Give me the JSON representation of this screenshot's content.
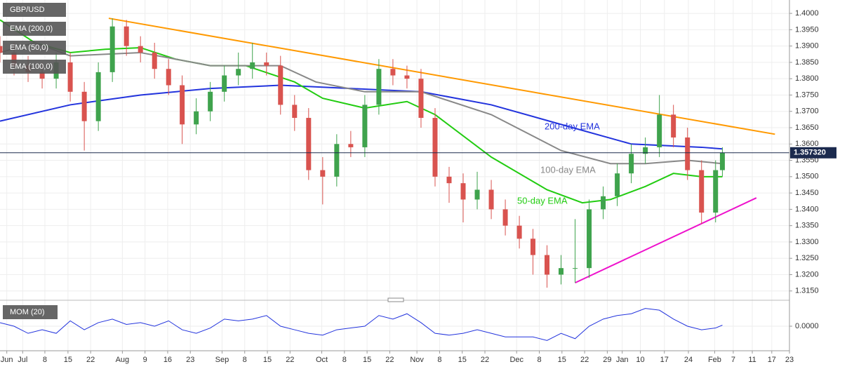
{
  "chart_data": [
    {
      "type": "candlestick",
      "symbol": "GBP/USD",
      "up_color": "#3fa34d",
      "down_color": "#d9534f",
      "grid": true,
      "xlim": [
        0,
        174.2
      ],
      "ylim": [
        1.3128,
        1.4041
      ],
      "xticks": [
        {
          "value": 1.5,
          "label": "Jun"
        },
        {
          "value": 5,
          "label": "Jul"
        },
        {
          "value": 9.9,
          "label": "8"
        },
        {
          "value": 15,
          "label": "15"
        },
        {
          "value": 20,
          "label": "22"
        },
        {
          "value": 27,
          "label": "Aug"
        },
        {
          "value": 32,
          "label": "9"
        },
        {
          "value": 37,
          "label": "16"
        },
        {
          "value": 42,
          "label": "23"
        },
        {
          "value": 49,
          "label": "Sep"
        },
        {
          "value": 54,
          "label": "8"
        },
        {
          "value": 59,
          "label": "15"
        },
        {
          "value": 64,
          "label": "22"
        },
        {
          "value": 71,
          "label": "Oct"
        },
        {
          "value": 76,
          "label": "8"
        },
        {
          "value": 81,
          "label": "15"
        },
        {
          "value": 86,
          "label": "22"
        },
        {
          "value": 92,
          "label": "Nov"
        },
        {
          "value": 97,
          "label": "8"
        },
        {
          "value": 102,
          "label": "15"
        },
        {
          "value": 107,
          "label": "22"
        },
        {
          "value": 114,
          "label": "Dec"
        },
        {
          "value": 119,
          "label": "8"
        },
        {
          "value": 124,
          "label": "15"
        },
        {
          "value": 129,
          "label": "22"
        },
        {
          "value": 134,
          "label": "29"
        },
        {
          "value": 137.3,
          "label": "Jan"
        },
        {
          "value": 141.3,
          "label": "10"
        },
        {
          "value": 146.6,
          "label": "17"
        },
        {
          "value": 151.9,
          "label": "24"
        },
        {
          "value": 157.7,
          "label": "Feb"
        },
        {
          "value": 161.8,
          "label": "7"
        },
        {
          "value": 166,
          "label": "11"
        },
        {
          "value": 170.3,
          "label": "17"
        },
        {
          "value": 174.2,
          "label": "23"
        }
      ],
      "yticks": [
        {
          "value": 1.315,
          "label": "1.3150"
        },
        {
          "value": 1.32,
          "label": "1.3200"
        },
        {
          "value": 1.325,
          "label": "1.3250"
        },
        {
          "value": 1.33,
          "label": "1.3300"
        },
        {
          "value": 1.335,
          "label": "1.3350"
        },
        {
          "value": 1.34,
          "label": "1.3400"
        },
        {
          "value": 1.345,
          "label": "1.3450"
        },
        {
          "value": 1.35,
          "label": "1.3500"
        },
        {
          "value": 1.355,
          "label": "1.3550"
        },
        {
          "value": 1.36,
          "label": "1.3600"
        },
        {
          "value": 1.365,
          "label": "1.3650"
        },
        {
          "value": 1.37,
          "label": "1.3700"
        },
        {
          "value": 1.375,
          "label": "1.3750"
        },
        {
          "value": 1.38,
          "label": "1.3800"
        },
        {
          "value": 1.385,
          "label": "1.3850"
        },
        {
          "value": 1.39,
          "label": "1.3900"
        },
        {
          "value": 1.395,
          "label": "1.3950"
        },
        {
          "value": 1.4,
          "label": "1.4000"
        }
      ],
      "x": [
        0,
        3.1,
        6.2,
        9.3,
        12.4,
        15.5,
        18.6,
        21.7,
        24.8,
        27.9,
        31,
        34.1,
        37.2,
        40.2,
        43.3,
        46.4,
        49.5,
        52.6,
        55.7,
        58.8,
        61.9,
        65,
        68.1,
        71.2,
        74.3,
        77.4,
        80.5,
        83.6,
        86.7,
        89.8,
        92.9,
        96,
        99.1,
        102.2,
        105.3,
        108.4,
        111.5,
        114.6,
        117.6,
        120.7,
        123.8,
        126.9,
        130,
        133.1,
        136.2,
        139.3,
        142.4,
        145.5,
        148.6,
        151.7,
        154.8,
        157.9,
        159.4
      ],
      "open": [
        1.39,
        1.388,
        1.384,
        1.382,
        1.38,
        1.385,
        1.376,
        1.367,
        1.382,
        1.396,
        1.39,
        1.388,
        1.383,
        1.378,
        1.366,
        1.37,
        1.376,
        1.381,
        1.383,
        1.385,
        1.384,
        1.372,
        1.368,
        1.352,
        1.35,
        1.36,
        1.359,
        1.372,
        1.383,
        1.381,
        1.38,
        1.368,
        1.35,
        1.348,
        1.343,
        1.346,
        1.34,
        1.335,
        1.331,
        1.326,
        1.32,
        1.322,
        1.322,
        1.34,
        1.344,
        1.351,
        1.357,
        1.359,
        1.369,
        1.362,
        1.352,
        1.339,
        1.352
      ],
      "high": [
        1.393,
        1.391,
        1.387,
        1.385,
        1.388,
        1.388,
        1.379,
        1.385,
        1.3985,
        1.398,
        1.393,
        1.391,
        1.386,
        1.381,
        1.374,
        1.379,
        1.384,
        1.388,
        1.391,
        1.388,
        1.387,
        1.375,
        1.371,
        1.356,
        1.363,
        1.364,
        1.375,
        1.386,
        1.386,
        1.384,
        1.383,
        1.371,
        1.353,
        1.351,
        1.3515,
        1.349,
        1.343,
        1.338,
        1.334,
        1.329,
        1.326,
        1.337,
        1.343,
        1.347,
        1.354,
        1.36,
        1.362,
        1.375,
        1.372,
        1.365,
        1.355,
        1.355,
        1.359
      ],
      "low": [
        1.385,
        1.381,
        1.379,
        1.377,
        1.377,
        1.373,
        1.358,
        1.364,
        1.379,
        1.387,
        1.385,
        1.38,
        1.375,
        1.36,
        1.363,
        1.367,
        1.373,
        1.378,
        1.38,
        1.381,
        1.369,
        1.364,
        1.349,
        1.3415,
        1.347,
        1.356,
        1.356,
        1.369,
        1.378,
        1.377,
        1.365,
        1.347,
        1.342,
        1.336,
        1.34,
        1.337,
        1.332,
        1.328,
        1.32,
        1.316,
        1.317,
        1.3175,
        1.319,
        1.337,
        1.341,
        1.348,
        1.354,
        1.356,
        1.359,
        1.349,
        1.3355,
        1.336,
        1.35
      ],
      "close": [
        1.388,
        1.384,
        1.382,
        1.38,
        1.385,
        1.376,
        1.367,
        1.382,
        1.396,
        1.39,
        1.388,
        1.383,
        1.378,
        1.366,
        1.37,
        1.376,
        1.381,
        1.383,
        1.385,
        1.384,
        1.372,
        1.368,
        1.352,
        1.35,
        1.36,
        1.359,
        1.372,
        1.383,
        1.381,
        1.38,
        1.368,
        1.35,
        1.348,
        1.343,
        1.346,
        1.34,
        1.335,
        1.331,
        1.326,
        1.32,
        1.322,
        1.322,
        1.34,
        1.344,
        1.351,
        1.357,
        1.359,
        1.369,
        1.362,
        1.352,
        1.339,
        1.352,
        1.3573
      ],
      "last_price": 1.35732,
      "last_price_label": "1.357320",
      "series": [
        {
          "name": "EMA (200,0)",
          "label": "200-day EMA",
          "color": "#2233dd",
          "x": [
            0,
            15.5,
            31,
            46.4,
            61.9,
            77.4,
            92.9,
            108.4,
            123.8,
            139.3,
            154.8,
            159.4
          ],
          "values": [
            1.367,
            1.372,
            1.375,
            1.377,
            1.378,
            1.377,
            1.376,
            1.372,
            1.366,
            1.36,
            1.359,
            1.3585
          ]
        },
        {
          "name": "EMA (50,0)",
          "label": "50-day EMA",
          "color": "#22cc11",
          "x": [
            0,
            7.7,
            15.5,
            23.2,
            31,
            38.7,
            46.4,
            54.2,
            65,
            71.2,
            80.5,
            89.8,
            96,
            108.4,
            120.7,
            128.5,
            134.7,
            142.4,
            148.6,
            154.8,
            159.4
          ],
          "values": [
            1.398,
            1.391,
            1.388,
            1.389,
            1.3895,
            1.386,
            1.384,
            1.384,
            1.379,
            1.374,
            1.371,
            1.373,
            1.369,
            1.356,
            1.346,
            1.342,
            1.343,
            1.347,
            1.351,
            1.35,
            1.35
          ]
        },
        {
          "name": "EMA (100,0)",
          "label": "100-day EMA",
          "color": "#888888",
          "x": [
            0,
            7.7,
            15.5,
            31,
            46.4,
            61.9,
            69.7,
            80.5,
            92.9,
            108.4,
            123.8,
            134.7,
            142.4,
            151.7,
            159.4
          ],
          "values": [
            1.388,
            1.391,
            1.387,
            1.388,
            1.384,
            1.384,
            1.379,
            1.376,
            1.376,
            1.369,
            1.358,
            1.354,
            1.354,
            1.355,
            1.354
          ]
        }
      ],
      "trendlines": [
        {
          "color": "#ff9900",
          "x": [
            24,
            171
          ],
          "values": [
            1.3985,
            1.363
          ]
        },
        {
          "color": "#ee11cc",
          "x": [
            126.9,
            166.9
          ],
          "values": [
            1.3175,
            1.3435
          ]
        }
      ]
    },
    {
      "type": "line",
      "title": "MOM (20)",
      "color": "#2233dd",
      "xlim": [
        0,
        174.2
      ],
      "ylim": [
        -0.065,
        0.065
      ],
      "yticks": [
        {
          "value": 0,
          "label": "0.0000"
        }
      ],
      "x": [
        0,
        3.1,
        6.2,
        9.3,
        12.4,
        15.5,
        18.6,
        21.7,
        24.8,
        27.9,
        31,
        34.1,
        37.2,
        40.2,
        43.3,
        46.4,
        49.5,
        52.6,
        55.7,
        58.8,
        61.9,
        65,
        68.1,
        71.2,
        74.3,
        77.4,
        80.5,
        83.6,
        86.7,
        89.8,
        92.9,
        96,
        99.1,
        102.2,
        105.3,
        108.4,
        111.5,
        114.6,
        117.6,
        120.7,
        123.8,
        126.9,
        130,
        133.1,
        136.2,
        139.3,
        142.4,
        145.5,
        148.6,
        151.7,
        154.8,
        157.9,
        159.4
      ],
      "values": [
        0.01,
        0,
        -0.02,
        -0.01,
        -0.02,
        0.015,
        -0.01,
        0.01,
        0.02,
        0.005,
        0.01,
        0,
        0.015,
        -0.01,
        -0.02,
        -0.005,
        0.02,
        0.015,
        0.02,
        0.03,
        0,
        -0.01,
        -0.02,
        -0.025,
        -0.01,
        -0.005,
        0,
        0.03,
        0.02,
        0.035,
        0.01,
        -0.02,
        -0.025,
        -0.02,
        -0.01,
        -0.02,
        -0.03,
        -0.03,
        -0.03,
        -0.04,
        -0.02,
        -0.035,
        0,
        0.02,
        0.03,
        0.035,
        0.05,
        0.045,
        0.02,
        0,
        -0.01,
        -0.005,
        0.003
      ]
    }
  ]
}
